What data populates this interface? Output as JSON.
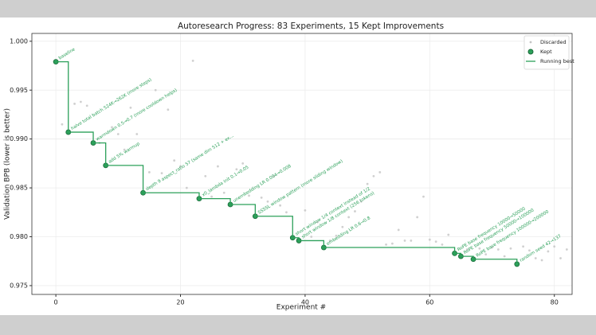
{
  "chart_data": {
    "type": "scatter",
    "title": "Autoresearch Progress: 83 Experiments, 15 Kept Improvements",
    "xlabel": "Experiment #",
    "ylabel": "Validation BPB (lower is better)",
    "xlim": [
      -3.85,
      82.85
    ],
    "ylim": [
      0.9741,
      1.0008
    ],
    "xticks": [
      0,
      20,
      40,
      60,
      80
    ],
    "yticks": [
      0.975,
      {
        "value": 0.98,
        "label": "0.980"
      },
      0.985,
      {
        "value": 0.99,
        "label": "0.990"
      },
      0.995,
      {
        "value": 1,
        "label": "1.000"
      }
    ],
    "grid": true,
    "legend": "upper right",
    "series": [
      {
        "name": "Discarded",
        "color": "#c4c4c4",
        "x": [
          1,
          3,
          4,
          5,
          7,
          9,
          10,
          11,
          12,
          13,
          15,
          16,
          17,
          18,
          19,
          20,
          21,
          22,
          24,
          25,
          26,
          27,
          29,
          30,
          31,
          33,
          34,
          35,
          36,
          37,
          40,
          41,
          42,
          44,
          45,
          46,
          47,
          48,
          49,
          50,
          51,
          52,
          53,
          54,
          55,
          56,
          57,
          58,
          59,
          60,
          61,
          62,
          63,
          66,
          68,
          69,
          70,
          71,
          72,
          73,
          75,
          76,
          77,
          78,
          79,
          80,
          81,
          82
        ],
        "values": [
          0.9915,
          0.9936,
          0.9938,
          0.9934,
          0.9896,
          0.9912,
          0.9905,
          0.9889,
          0.9932,
          0.9905,
          0.9866,
          0.995,
          0.9865,
          0.993,
          0.9878,
          0.9872,
          0.985,
          0.998,
          0.9862,
          0.9841,
          0.9872,
          0.9845,
          0.9869,
          0.9875,
          0.9842,
          0.984,
          0.9836,
          0.9862,
          0.9832,
          0.9825,
          0.9827,
          0.98,
          0.9815,
          0.9796,
          0.9801,
          0.981,
          0.982,
          0.9826,
          0.9836,
          0.9854,
          0.9862,
          0.9866,
          0.9792,
          0.9793,
          0.9807,
          0.9796,
          0.9796,
          0.982,
          0.9841,
          0.9797,
          0.9795,
          0.9792,
          0.9802,
          0.9787,
          0.9788,
          0.9782,
          0.9789,
          0.9787,
          0.978,
          0.9788,
          0.979,
          0.9786,
          0.9778,
          0.9776,
          0.9785,
          0.979,
          0.9778,
          0.9787
        ]
      },
      {
        "name": "Kept",
        "color": "#2ca05a",
        "x": [
          0,
          2,
          6,
          8,
          14,
          23,
          28,
          32,
          38,
          39,
          43,
          64,
          65,
          67,
          74
        ],
        "values": [
          0.9979,
          0.9907,
          0.9896,
          0.9873,
          0.9845,
          0.9839,
          0.9833,
          0.9821,
          0.9799,
          0.9796,
          0.9789,
          0.9783,
          0.978,
          0.9777,
          0.9772
        ],
        "labels": [
          "baseline",
          "halve total batch 524K→262K (more steps)",
          "warmdown 0.5→0.7 (more cooldown helps)",
          "add 5% warmup",
          "depth 9 aspect_ratio 57 (same dim 512 + ex...",
          "x0_lambda init 0.1→0.05",
          "unembedding LR 0.004→0.008",
          "SSSSL window pattern (more sliding window)",
          "short window 1/4 context instead of 1/2",
          "short window 1/8 context (256 tokens)",
          "embedding LR 0.6→0.8",
          "RoPE base frequency 10000→50000",
          "RoPE base frequency 50000→100000",
          "RoPE base frequency 100000→200000",
          "random seed 42→137"
        ]
      },
      {
        "name": "Running best",
        "color": "#2ca05a",
        "style": "step"
      }
    ]
  }
}
